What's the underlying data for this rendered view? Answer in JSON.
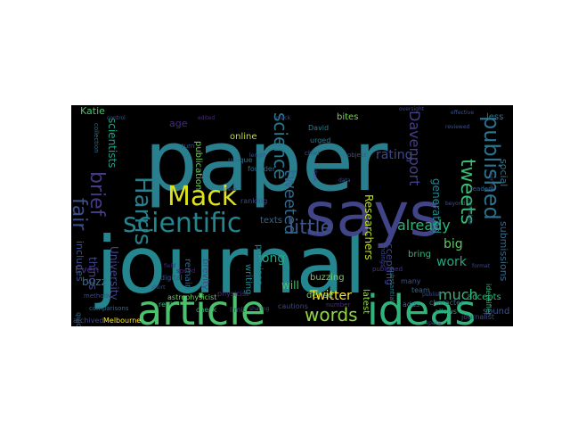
{
  "figure": {
    "background": "#ffffff",
    "cloud_background": "#000000",
    "colormap": "viridis",
    "words": [
      {
        "text": "paper",
        "color": "#2a7f8e"
      },
      {
        "text": "journal",
        "color": "#24868e"
      },
      {
        "text": "says",
        "color": "#414487"
      },
      {
        "text": "article",
        "color": "#4ac16d"
      },
      {
        "text": "ideas",
        "color": "#2fb47c"
      },
      {
        "text": "scientific",
        "color": "#25858e"
      },
      {
        "text": "Harris",
        "color": "#277f8e"
      },
      {
        "text": "Mack",
        "color": "#dde318"
      },
      {
        "text": "published",
        "color": "#2c728e"
      },
      {
        "text": "tweets",
        "color": "#3bbb75"
      },
      {
        "text": "little",
        "color": "#3b528b"
      },
      {
        "text": "brief",
        "color": "#443a83"
      },
      {
        "text": "words",
        "color": "#90d743"
      },
      {
        "text": "fair",
        "color": "#3c4f8a"
      },
      {
        "text": "science",
        "color": "#2a788e"
      },
      {
        "text": "tweeted",
        "color": "#31688e"
      },
      {
        "text": "Davenport",
        "color": "#433e85"
      },
      {
        "text": "already",
        "color": "#2fb47c"
      },
      {
        "text": "work",
        "color": "#22a884"
      },
      {
        "text": "much",
        "color": "#35b779"
      },
      {
        "text": "Twitter",
        "color": "#fde725"
      },
      {
        "text": "big",
        "color": "#5ec962"
      },
      {
        "text": "rating",
        "color": "#3e4989"
      },
      {
        "text": "long",
        "color": "#22a884"
      },
      {
        "text": "accepting",
        "color": "#3f4788"
      },
      {
        "text": "generated",
        "color": "#25858e"
      },
      {
        "text": "submissions",
        "color": "#31688e"
      },
      {
        "text": "social",
        "color": "#2c728e"
      },
      {
        "text": "scientists",
        "color": "#1fa088"
      },
      {
        "text": "Researchers",
        "color": "#c2df23"
      },
      {
        "text": "University",
        "color": "#404688"
      },
      {
        "text": "things",
        "color": "#3e4989"
      },
      {
        "text": "includes",
        "color": "#3b528b"
      },
      {
        "text": "Even",
        "color": "#46327e"
      },
      {
        "text": "buzz",
        "color": "#2d708e"
      },
      {
        "text": "Katie",
        "color": "#4ac16d"
      },
      {
        "text": "age",
        "color": "#472d7b"
      },
      {
        "text": "publication",
        "color": "#6ece58"
      },
      {
        "text": "online",
        "color": "#bddf26"
      },
      {
        "text": "remain",
        "color": "#31688e"
      },
      {
        "text": "texts",
        "color": "#31688e"
      },
      {
        "text": "promises",
        "color": "#277f8e"
      },
      {
        "text": "brevity",
        "color": "#3e4989"
      },
      {
        "text": "writing",
        "color": "#25858e"
      },
      {
        "text": "buzzing",
        "color": "#7ad151"
      },
      {
        "text": "will",
        "color": "#4ac16d"
      },
      {
        "text": "dense",
        "color": "#7ad151"
      },
      {
        "text": "bring",
        "color": "#2fb47c"
      },
      {
        "text": "latest",
        "color": "#8fd744"
      },
      {
        "text": "bites",
        "color": "#7ad151"
      },
      {
        "text": "less",
        "color": "#2a788e"
      },
      {
        "text": "accepts",
        "color": "#2fb47c"
      },
      {
        "text": "sound",
        "color": "#3b528b"
      },
      {
        "text": "urged",
        "color": "#2a788e"
      },
      {
        "text": "David",
        "color": "#277f8e"
      },
      {
        "text": "astrophysicist",
        "color": "#6ece58"
      },
      {
        "text": "Melbourne",
        "color": "#fde725"
      },
      {
        "text": "archived",
        "color": "#404688"
      },
      {
        "text": "digital",
        "color": "#3b528b"
      },
      {
        "text": "real",
        "color": "#2fb47c"
      },
      {
        "text": "quickly",
        "color": "#2d708e"
      },
      {
        "text": "check",
        "color": "#35b779"
      },
      {
        "text": "limit",
        "color": "#3e4989"
      },
      {
        "text": "physicist",
        "color": "#46327e"
      },
      {
        "text": "journalist",
        "color": "#3f4788"
      },
      {
        "text": "character",
        "color": "#2d708e"
      },
      {
        "text": "allows",
        "color": "#22a884"
      },
      {
        "text": "identifier",
        "color": "#2fb47c"
      },
      {
        "text": "many",
        "color": "#3b528b"
      },
      {
        "text": "team",
        "color": "#31688e"
      },
      {
        "text": "adds",
        "color": "#2a788e"
      },
      {
        "text": "founder",
        "color": "#2d708e"
      },
      {
        "text": "unique",
        "color": "#2d708e"
      },
      {
        "text": "ranking",
        "color": "#3e4989"
      },
      {
        "text": "cautions",
        "color": "#414487"
      },
      {
        "text": "comparisons",
        "color": "#31688e"
      },
      {
        "text": "method",
        "color": "#3e4989"
      },
      {
        "text": "collection",
        "color": "#2d708e"
      },
      {
        "text": "object",
        "color": "#3b528b"
      },
      {
        "text": "findings",
        "color": "#3e4989"
      },
      {
        "text": "substantial",
        "color": "#2a788e"
      },
      {
        "text": "number",
        "color": "#46327e"
      },
      {
        "text": "spend",
        "color": "#482576"
      },
      {
        "text": "turn",
        "color": "#3b528b"
      },
      {
        "text": "chief",
        "color": "#3b528b"
      },
      {
        "text": "readers",
        "color": "#31688e"
      },
      {
        "text": "published",
        "color": "#453781"
      },
      {
        "text": "dark",
        "color": "#3e4989"
      },
      {
        "text": "oversight",
        "color": "#3f4788"
      },
      {
        "text": "candidate",
        "color": "#31688e"
      },
      {
        "text": "data",
        "color": "#3b528b"
      },
      {
        "text": "publish",
        "color": "#3e4989"
      },
      {
        "text": "reviewed",
        "color": "#3b528b"
      },
      {
        "text": "edited",
        "color": "#472d7b"
      },
      {
        "text": "quick",
        "color": "#3e4989"
      },
      {
        "text": "short",
        "color": "#3e4989"
      },
      {
        "text": "control",
        "color": "#3b528b"
      },
      {
        "text": "beyond",
        "color": "#3b528b"
      },
      {
        "text": "field",
        "color": "#482576"
      },
      {
        "text": "peer",
        "color": "#3e4989"
      },
      {
        "text": "sharing",
        "color": "#3e4989"
      },
      {
        "text": "length",
        "color": "#3b528b"
      },
      {
        "text": "format",
        "color": "#3e4989"
      },
      {
        "text": "service",
        "color": "#3e4989"
      },
      {
        "text": "effective",
        "color": "#3b528b"
      },
      {
        "text": "space",
        "color": "#3e4989"
      }
    ]
  }
}
